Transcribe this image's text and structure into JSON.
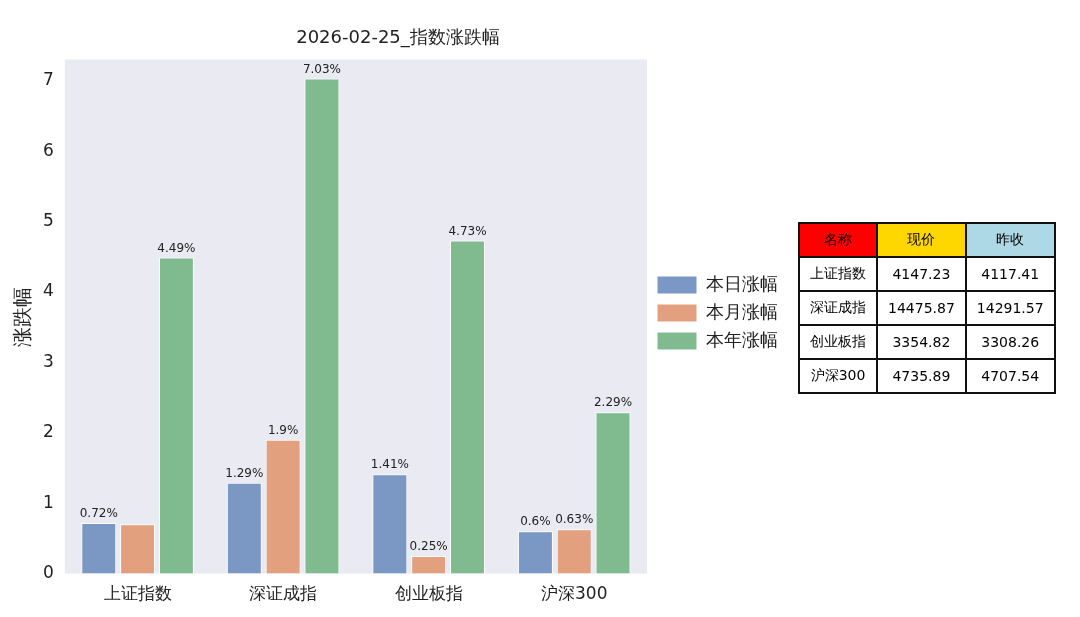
{
  "chart_data": {
    "type": "bar",
    "title": "2026-02-25_指数涨跌幅",
    "ylabel": "涨跌幅",
    "categories": [
      "上证指数",
      "深证成指",
      "创业板指",
      "沪深300"
    ],
    "series": [
      {
        "name": "本日涨幅",
        "color": "#7b97c4",
        "values": [
          0.72,
          1.29,
          1.41,
          0.6
        ],
        "value_labels": [
          "0.72%",
          "1.29%",
          "1.41%",
          "0.6%"
        ]
      },
      {
        "name": "本月涨幅",
        "color": "#e3a07f",
        "values": [
          0.7,
          1.9,
          0.25,
          0.63
        ],
        "value_labels": [
          null,
          "1.9%",
          "0.25%",
          "0.63%"
        ]
      },
      {
        "name": "本年涨幅",
        "color": "#80bb8f",
        "values": [
          4.49,
          7.03,
          4.73,
          2.29
        ],
        "value_labels": [
          "4.49%",
          "7.03%",
          "4.73%",
          "2.29%"
        ]
      }
    ],
    "ylim": [
      0,
      7.3
    ],
    "yticks": [
      0,
      1,
      2,
      3,
      4,
      5,
      6,
      7
    ],
    "grid": false,
    "legend": "right",
    "annotations": [
      "名称",
      "现价",
      "昨收",
      "上证指数",
      "4147.23",
      "4117.41",
      "深证成指",
      "14475.87",
      "14291.57",
      "创业板指",
      "3354.82",
      "3308.26",
      "沪深300",
      "4735.89",
      "4707.54"
    ]
  }
}
